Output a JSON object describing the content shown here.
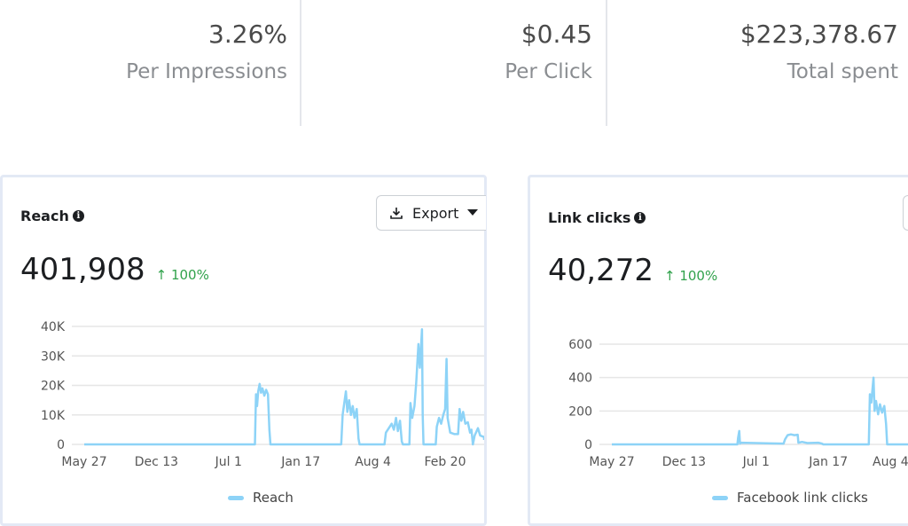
{
  "stats": [
    {
      "value": "3.26%",
      "label": "Per Impressions"
    },
    {
      "value": "$0.45",
      "label": "Per Click"
    },
    {
      "value": "$223,378.67",
      "label": "Total spent"
    }
  ],
  "colors": {
    "line": "#8dd3f7",
    "positive": "#31a24c",
    "grid": "#e6e6e6"
  },
  "cards": [
    {
      "title": "Reach",
      "info_icon": "info-icon",
      "export_label": "Export",
      "total": "401,908",
      "change": "100%",
      "change_icon": "arrow-up-icon"
    },
    {
      "title": "Link clicks",
      "info_icon": "info-icon",
      "total": "40,272",
      "change": "100%",
      "change_icon": "arrow-up-icon"
    }
  ],
  "chart_data": [
    {
      "type": "line",
      "xlabel": "",
      "ylabel": "",
      "xlim": [
        "2018-05-27",
        "2021-06-18"
      ],
      "ylim": [
        0,
        40000
      ],
      "x_ticks": [
        {
          "date": "2018-05-27",
          "label": "May 27"
        },
        {
          "date": "2018-12-13",
          "label": "Dec 13"
        },
        {
          "date": "2019-07-01",
          "label": "Jul 1"
        },
        {
          "date": "2020-01-17",
          "label": "Jan 17"
        },
        {
          "date": "2020-08-04",
          "label": "Aug 4"
        },
        {
          "date": "2021-02-20",
          "label": "Feb 20"
        }
      ],
      "y_ticks": [
        {
          "value": 0,
          "label": "0"
        },
        {
          "value": 10000,
          "label": "10K"
        },
        {
          "value": 20000,
          "label": "20K"
        },
        {
          "value": 30000,
          "label": "30K"
        },
        {
          "value": 40000,
          "label": "40K"
        }
      ],
      "grid": true,
      "legend": "bottom",
      "series": [
        {
          "name": "Reach",
          "points": [
            [
              "2018-05-27",
              0
            ],
            [
              "2019-09-12",
              0
            ],
            [
              "2019-09-15",
              17000
            ],
            [
              "2019-09-18",
              13000
            ],
            [
              "2019-09-21",
              18000
            ],
            [
              "2019-09-25",
              20500
            ],
            [
              "2019-09-29",
              17500
            ],
            [
              "2019-10-03",
              19000
            ],
            [
              "2019-10-08",
              16500
            ],
            [
              "2019-10-13",
              18500
            ],
            [
              "2019-10-18",
              17000
            ],
            [
              "2019-10-22",
              5000
            ],
            [
              "2019-10-25",
              0
            ],
            [
              "2020-05-08",
              0
            ],
            [
              "2020-05-12",
              10000
            ],
            [
              "2020-05-21",
              18000
            ],
            [
              "2020-05-25",
              11000
            ],
            [
              "2020-05-30",
              15000
            ],
            [
              "2020-06-04",
              10000
            ],
            [
              "2020-06-09",
              13000
            ],
            [
              "2020-06-14",
              9000
            ],
            [
              "2020-06-20",
              12000
            ],
            [
              "2020-06-25",
              2000
            ],
            [
              "2020-06-28",
              0
            ],
            [
              "2020-09-05",
              0
            ],
            [
              "2020-09-09",
              4000
            ],
            [
              "2020-09-17",
              5500
            ],
            [
              "2020-09-25",
              7000
            ],
            [
              "2020-10-01",
              5000
            ],
            [
              "2020-10-07",
              9000
            ],
            [
              "2020-10-12",
              4500
            ],
            [
              "2020-10-18",
              8000
            ],
            [
              "2020-10-23",
              1000
            ],
            [
              "2020-10-26",
              0
            ],
            [
              "2020-11-13",
              0
            ],
            [
              "2020-11-16",
              14000
            ],
            [
              "2020-11-21",
              9000
            ],
            [
              "2020-11-27",
              13000
            ],
            [
              "2020-12-02",
              21000
            ],
            [
              "2020-12-08",
              34000
            ],
            [
              "2020-12-12",
              26000
            ],
            [
              "2020-12-18",
              39000
            ],
            [
              "2020-12-20",
              10000
            ],
            [
              "2020-12-22",
              0
            ],
            [
              "2021-01-25",
              0
            ],
            [
              "2021-01-28",
              6000
            ],
            [
              "2021-02-03",
              9000
            ],
            [
              "2021-02-09",
              7000
            ],
            [
              "2021-02-15",
              10000
            ],
            [
              "2021-02-20",
              12000
            ],
            [
              "2021-02-24",
              29000
            ],
            [
              "2021-02-27",
              9000
            ],
            [
              "2021-03-06",
              4000
            ],
            [
              "2021-03-18",
              3500
            ],
            [
              "2021-03-28",
              3500
            ],
            [
              "2021-04-01",
              12000
            ],
            [
              "2021-04-06",
              8000
            ],
            [
              "2021-04-11",
              11000
            ],
            [
              "2021-04-17",
              7000
            ],
            [
              "2021-04-24",
              7500
            ],
            [
              "2021-04-30",
              4000
            ],
            [
              "2021-05-04",
              5000
            ],
            [
              "2021-05-08",
              0
            ],
            [
              "2021-05-13",
              3000
            ],
            [
              "2021-05-22",
              5500
            ],
            [
              "2021-05-28",
              3000
            ],
            [
              "2021-06-08",
              2500
            ],
            [
              "2021-06-18",
              1500
            ]
          ]
        }
      ]
    },
    {
      "type": "line",
      "xlabel": "",
      "ylabel": "",
      "xlim": [
        "2018-05-27",
        "2021-06-18"
      ],
      "ylim": [
        0,
        600
      ],
      "x_ticks": [
        {
          "date": "2018-05-27",
          "label": "May 27"
        },
        {
          "date": "2018-12-13",
          "label": "Dec 13"
        },
        {
          "date": "2019-07-01",
          "label": "Jul 1"
        },
        {
          "date": "2020-01-17",
          "label": "Jan 17"
        },
        {
          "date": "2020-08-04",
          "label": "Aug 4"
        }
      ],
      "y_ticks": [
        {
          "value": 0,
          "label": "0"
        },
        {
          "value": 200,
          "label": "200"
        },
        {
          "value": 400,
          "label": "400"
        },
        {
          "value": 600,
          "label": "600"
        }
      ],
      "grid": true,
      "legend": "bottom",
      "series": [
        {
          "name": "Facebook link clicks",
          "points": [
            [
              "2018-05-27",
              0
            ],
            [
              "2019-05-10",
              0
            ],
            [
              "2019-05-12",
              40
            ],
            [
              "2019-05-15",
              80
            ],
            [
              "2019-05-17",
              5
            ],
            [
              "2019-05-20",
              10
            ],
            [
              "2019-07-01",
              8
            ],
            [
              "2019-08-10",
              6
            ],
            [
              "2019-09-15",
              5
            ],
            [
              "2019-09-19",
              30
            ],
            [
              "2019-09-26",
              55
            ],
            [
              "2019-10-05",
              60
            ],
            [
              "2019-10-15",
              55
            ],
            [
              "2019-10-24",
              58
            ],
            [
              "2019-10-26",
              10
            ],
            [
              "2019-11-05",
              15
            ],
            [
              "2019-11-20",
              8
            ],
            [
              "2019-12-20",
              10
            ],
            [
              "2019-12-30",
              5
            ],
            [
              "2020-01-03",
              0
            ],
            [
              "2020-05-08",
              0
            ],
            [
              "2020-05-11",
              300
            ],
            [
              "2020-05-15",
              250
            ],
            [
              "2020-05-21",
              400
            ],
            [
              "2020-05-24",
              200
            ],
            [
              "2020-05-28",
              260
            ],
            [
              "2020-06-03",
              180
            ],
            [
              "2020-06-08",
              240
            ],
            [
              "2020-06-14",
              190
            ],
            [
              "2020-06-20",
              230
            ],
            [
              "2020-06-25",
              120
            ],
            [
              "2020-06-28",
              0
            ],
            [
              "2020-09-05",
              0
            ]
          ]
        }
      ]
    }
  ]
}
